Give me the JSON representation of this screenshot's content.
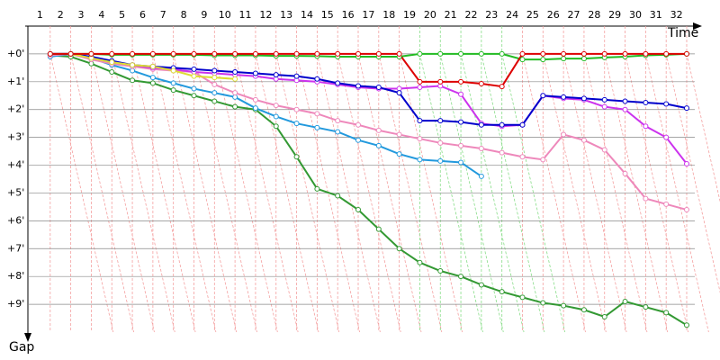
{
  "chart_data": {
    "type": "line",
    "x_label": "Time",
    "y_label": "Gap",
    "categories": [
      "1",
      "2",
      "3",
      "4",
      "5",
      "6",
      "7",
      "8",
      "9",
      "10",
      "11",
      "12",
      "13",
      "14",
      "15",
      "16",
      "17",
      "18",
      "19",
      "20",
      "21",
      "22",
      "23",
      "24",
      "25",
      "26",
      "27",
      "28",
      "29",
      "30",
      "31",
      "32"
    ],
    "ylim": [
      -1,
      10
    ],
    "yticks": [
      {
        "value": 0,
        "label": "+0'"
      },
      {
        "value": 1,
        "label": "+1'"
      },
      {
        "value": 2,
        "label": "+2'"
      },
      {
        "value": 3,
        "label": "+3'"
      },
      {
        "value": 4,
        "label": "+4'"
      },
      {
        "value": 5,
        "label": "+5'"
      },
      {
        "value": 6,
        "label": "+6'"
      },
      {
        "value": 7,
        "label": "+7'"
      },
      {
        "value": 8,
        "label": "+8'"
      },
      {
        "value": 9,
        "label": "+9'"
      }
    ],
    "grid": true,
    "series": [
      {
        "color": "#339933",
        "values": [
          0.05,
          0.1,
          0.35,
          0.65,
          0.95,
          1.05,
          1.3,
          1.5,
          1.7,
          1.9,
          2.0,
          2.6,
          3.7,
          4.85,
          5.1,
          5.6,
          6.3,
          7.0,
          7.5,
          7.8,
          8.0,
          8.3,
          8.55,
          8.75,
          8.95,
          9.05,
          9.2,
          9.45,
          8.9,
          9.1,
          9.3,
          9.75
        ]
      },
      {
        "color": "#2299dd",
        "values": [
          0.1,
          0.0,
          0.15,
          0.4,
          0.6,
          0.85,
          1.05,
          1.25,
          1.4,
          1.55,
          1.95,
          2.25,
          2.5,
          2.65,
          2.8,
          3.1,
          3.3,
          3.6,
          3.8,
          3.85,
          3.9,
          4.4,
          null,
          null,
          null,
          null,
          null,
          null,
          null,
          null,
          null,
          null
        ]
      },
      {
        "color": "#ee88bb",
        "values": [
          0.05,
          0,
          0.2,
          0.35,
          0.45,
          0.55,
          0.6,
          0.65,
          1.1,
          1.4,
          1.65,
          1.85,
          2.0,
          2.15,
          2.4,
          2.55,
          2.75,
          2.9,
          3.05,
          3.2,
          3.3,
          3.4,
          3.55,
          3.7,
          3.8,
          2.9,
          3.1,
          3.45,
          4.3,
          5.2,
          5.4,
          5.6
        ]
      },
      {
        "color": "#cc33ee",
        "values": [
          0,
          0,
          0.15,
          0.3,
          0.4,
          0.5,
          0.55,
          0.65,
          0.7,
          0.75,
          0.8,
          0.9,
          0.95,
          1.0,
          1.1,
          1.2,
          1.25,
          1.25,
          1.2,
          1.15,
          1.45,
          2.5,
          2.6,
          2.55,
          1.5,
          1.6,
          1.65,
          1.9,
          2.0,
          2.6,
          3.0,
          3.95
        ]
      },
      {
        "color": "#0000cc",
        "values": [
          0,
          0,
          0.1,
          0.25,
          0.4,
          0.45,
          0.5,
          0.55,
          0.6,
          0.65,
          0.7,
          0.75,
          0.8,
          0.9,
          1.05,
          1.15,
          1.2,
          1.4,
          2.4,
          2.4,
          2.45,
          2.55,
          2.55,
          2.55,
          1.5,
          1.55,
          1.6,
          1.65,
          1.7,
          1.75,
          1.8,
          1.95
        ]
      },
      {
        "color": "#dddd33",
        "values": [
          null,
          0,
          0.15,
          0.3,
          0.4,
          0.45,
          0.6,
          0.8,
          0.85,
          0.9,
          null,
          null,
          null,
          null,
          null,
          null,
          null,
          null,
          null,
          null,
          null,
          null,
          null,
          null,
          null,
          null,
          null,
          null,
          null,
          null,
          null,
          null
        ]
      },
      {
        "color": "#22bb22",
        "values": [
          0,
          0,
          0,
          0.03,
          0.03,
          0.03,
          0.03,
          0.03,
          0.05,
          0.05,
          0.05,
          0.07,
          0.07,
          0.08,
          0.1,
          0.1,
          0.1,
          0.1,
          0,
          0,
          0,
          0,
          0,
          0.2,
          0.2,
          0.17,
          0.17,
          0.13,
          0.1,
          0.05,
          0.03,
          0
        ]
      },
      {
        "color": "#dd0000",
        "values": [
          0,
          0,
          0,
          0,
          0,
          0,
          0,
          0,
          0,
          0,
          0,
          0,
          0,
          0,
          0,
          0,
          0,
          0,
          1.0,
          1.0,
          1.0,
          1.07,
          1.17,
          0,
          0,
          0,
          0,
          0,
          0,
          0,
          0,
          0
        ]
      }
    ]
  }
}
